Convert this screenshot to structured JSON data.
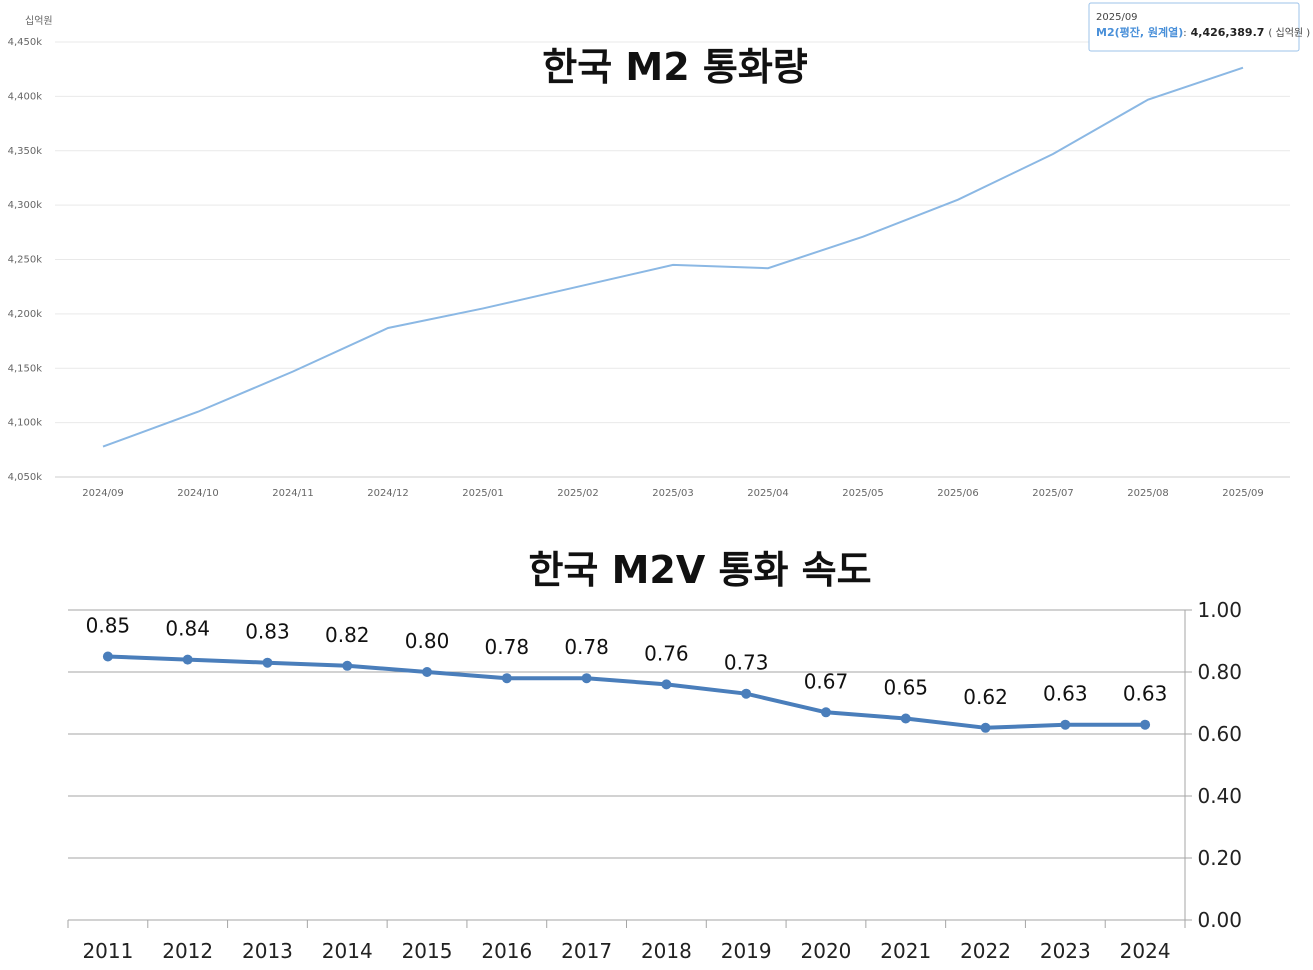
{
  "chart_data": [
    {
      "type": "line",
      "title": "한국 M2 통화량",
      "y_unit": "십억원",
      "categories": [
        "2024/09",
        "2024/10",
        "2024/11",
        "2024/12",
        "2025/01",
        "2025/02",
        "2025/03",
        "2025/04",
        "2025/05",
        "2025/06",
        "2025/07",
        "2025/08",
        "2025/09"
      ],
      "y_ticks": [
        "4,050k",
        "4,100k",
        "4,150k",
        "4,200k",
        "4,250k",
        "4,300k",
        "4,350k",
        "4,400k",
        "4,450k"
      ],
      "ylim": [
        4050000,
        4450000
      ],
      "series": [
        {
          "values": [
            4078000,
            4110000,
            4147000,
            4187000,
            4205000,
            4225000,
            4245000,
            4242000,
            4271000,
            4305000,
            4347000,
            4397000,
            4426389.7
          ]
        }
      ],
      "line_color": "#8bb8e4",
      "grid": true,
      "tooltip": {
        "date": "2025/09",
        "series": "M2(평잔, 원계열)",
        "sep": ":",
        "value": "4,426,389.7",
        "unit": "( 십억원 )"
      }
    },
    {
      "type": "line",
      "title": "한국 M2V 통화 속도",
      "categories": [
        "2011",
        "2012",
        "2013",
        "2014",
        "2015",
        "2016",
        "2017",
        "2018",
        "2019",
        "2020",
        "2021",
        "2022",
        "2023",
        "2024"
      ],
      "values": [
        0.85,
        0.84,
        0.83,
        0.82,
        0.8,
        0.78,
        0.78,
        0.76,
        0.73,
        0.67,
        0.65,
        0.62,
        0.63,
        0.63
      ],
      "data_labels": [
        "0.85",
        "0.84",
        "0.83",
        "0.82",
        "0.80",
        "0.78",
        "0.78",
        "0.76",
        "0.73",
        "0.67",
        "0.65",
        "0.62",
        "0.63",
        "0.63"
      ],
      "y_ticks": [
        "0.00",
        "0.20",
        "0.40",
        "0.60",
        "0.80",
        "1.00"
      ],
      "ylim": [
        0,
        1.0
      ],
      "y_axis_side": "right",
      "line_color": "#4a7ebb",
      "grid": true,
      "markers": true
    }
  ]
}
